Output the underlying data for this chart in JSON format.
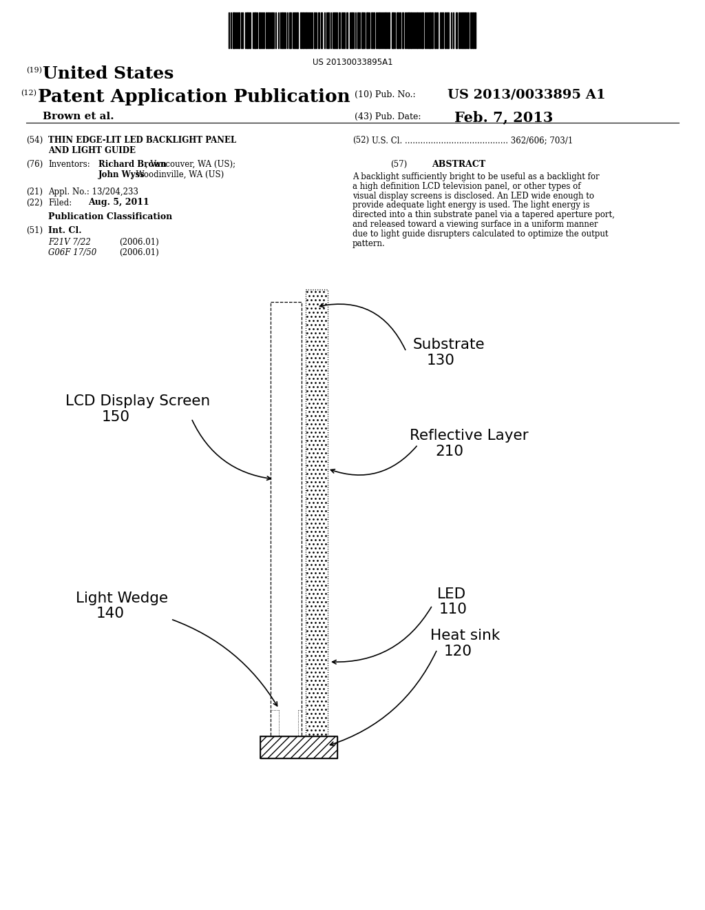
{
  "bg_color": "#ffffff",
  "barcode_text": "US 20130033895A1",
  "header_19": "(19)",
  "header_19_text": "United States",
  "header_12": "(12)",
  "header_12_text": "Patent Application Publication",
  "header_10": "(10) Pub. No.:",
  "header_10_val": "US 2013/0033895 A1",
  "header_brown": "Brown et al.",
  "header_43": "(43) Pub. Date:",
  "header_43_val": "Feb. 7, 2013",
  "field_54_label": "(54)",
  "field_54_line1": "THIN EDGE-LIT LED BACKLIGHT PANEL",
  "field_54_line2": "AND LIGHT GUIDE",
  "field_52_label": "(52)",
  "field_52_text": "U.S. Cl. ........................................ 362/606; 703/1",
  "field_76_label": "(76)",
  "field_76_text": "Inventors:",
  "field_76_line1": "Richard Brown, Vancouver, WA (US);",
  "field_76_line2": "John Wyss, Woodinville, WA (US)",
  "field_57_label": "(57)",
  "field_57_title": "ABSTRACT",
  "abstract_lines": [
    "A backlight sufficiently bright to be useful as a backlight for",
    "a high definition LCD television panel, or other types of",
    "visual display screens is disclosed. An LED wide enough to",
    "provide adequate light energy is used. The light energy is",
    "directed into a thin substrate panel via a tapered aperture port,",
    "and released toward a viewing surface in a uniform manner",
    "due to light guide disrupters calculated to optimize the output",
    "pattern."
  ],
  "field_21_label": "(21)",
  "field_21_text": "Appl. No.: 13/204,233",
  "field_22_label": "(22)",
  "field_22_filed": "Filed:",
  "field_22_val": "Aug. 5, 2011",
  "pub_class_title": "Publication Classification",
  "field_51_label": "(51)",
  "field_51_title": "Int. Cl.",
  "field_51_class1": "F21V 7/22",
  "field_51_year1": "(2006.01)",
  "field_51_class2": "G06F 17/50",
  "field_51_year2": "(2006.01)",
  "lbl_substrate": "Substrate",
  "lbl_substrate_num": "130",
  "lbl_reflective": "Reflective Layer",
  "lbl_reflective_num": "210",
  "lbl_lcd": "LCD Display Screen",
  "lbl_lcd_num": "150",
  "lbl_wedge": "Light Wedge",
  "lbl_wedge_num": "140",
  "lbl_led": "LED",
  "lbl_led_num": "110",
  "lbl_heatsink": "Heat sink",
  "lbl_heatsink_num": "120"
}
